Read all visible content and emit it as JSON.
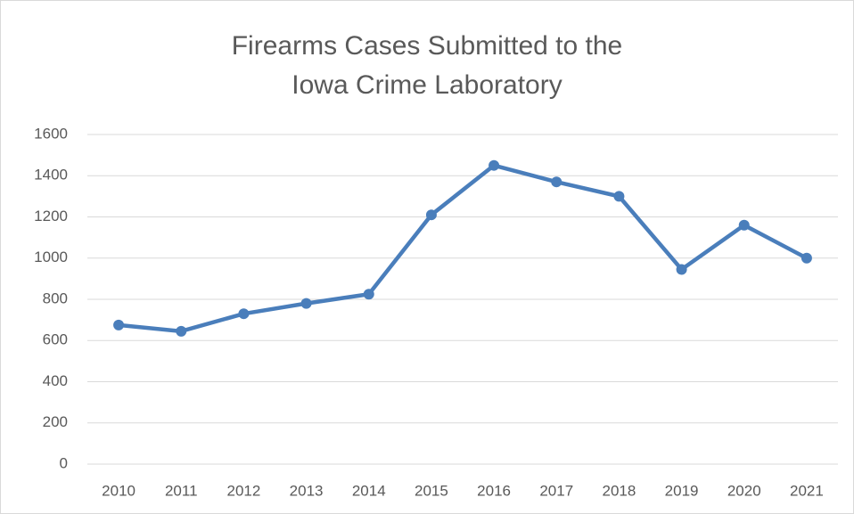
{
  "chart_data": {
    "type": "line",
    "title": "Firearms Cases Submitted to the Iowa Crime Laboratory",
    "categories": [
      "2010",
      "2011",
      "2012",
      "2013",
      "2014",
      "2015",
      "2016",
      "2017",
      "2018",
      "2019",
      "2020",
      "2021"
    ],
    "values": [
      675,
      645,
      730,
      780,
      825,
      1210,
      1450,
      1370,
      1300,
      945,
      1160,
      1000
    ],
    "color": "#4a7ebb",
    "ylim": [
      0,
      1600
    ],
    "yticks": [
      0,
      200,
      400,
      600,
      800,
      1000,
      1200,
      1400,
      1600
    ],
    "grid": true
  }
}
